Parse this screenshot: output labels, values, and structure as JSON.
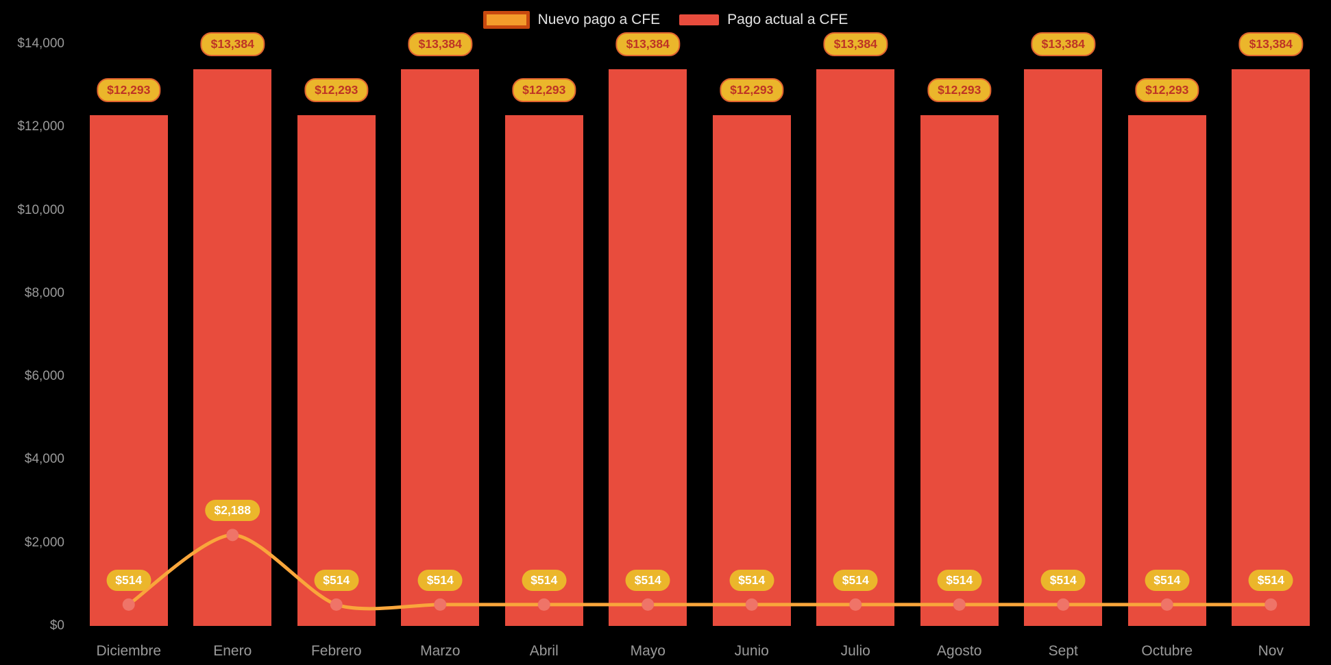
{
  "chart_data": {
    "type": "bar",
    "title": "",
    "xlabel": "",
    "ylabel": "",
    "grid": false,
    "legend_position": "top",
    "background": "#000000",
    "axis_text_color": "#9a9a9a",
    "label_pill_color": "#ebb62b",
    "bar_label_text_color": "#be3425",
    "line_label_text_color": "#ffffff",
    "ylim": [
      0,
      14000
    ],
    "yticks": [
      "$0",
      "$2,000",
      "$4,000",
      "$6,000",
      "$8,000",
      "$10,000",
      "$12,000",
      "$14,000"
    ],
    "categories": [
      "Diciembre",
      "Enero",
      "Febrero",
      "Marzo",
      "Abril",
      "Mayo",
      "Junio",
      "Julio",
      "Agosto",
      "Sept",
      "Octubre",
      "Nov"
    ],
    "series": [
      {
        "name": "Nuevo pago a CFE",
        "type": "line",
        "color": "#f9a63b",
        "point_color": "#ef7468",
        "swatch_fill": "#f39c2b",
        "swatch_border": "#c8490f",
        "values": [
          514,
          2188,
          514,
          514,
          514,
          514,
          514,
          514,
          514,
          514,
          514,
          514
        ],
        "labels": [
          "$514",
          "$2,188",
          "$514",
          "$514",
          "$514",
          "$514",
          "$514",
          "$514",
          "$514",
          "$514",
          "$514",
          "$514"
        ]
      },
      {
        "name": "Pago actual a CFE",
        "type": "bar",
        "color": "#e84c3d",
        "values": [
          12293,
          13384,
          12293,
          13384,
          12293,
          13384,
          12293,
          13384,
          12293,
          13384,
          12293,
          13384
        ],
        "labels": [
          "$12,293",
          "$13,384",
          "$12,293",
          "$13,384",
          "$12,293",
          "$13,384",
          "$12,293",
          "$13,384",
          "$12,293",
          "$13,384",
          "$12,293",
          "$13,384"
        ]
      }
    ]
  }
}
